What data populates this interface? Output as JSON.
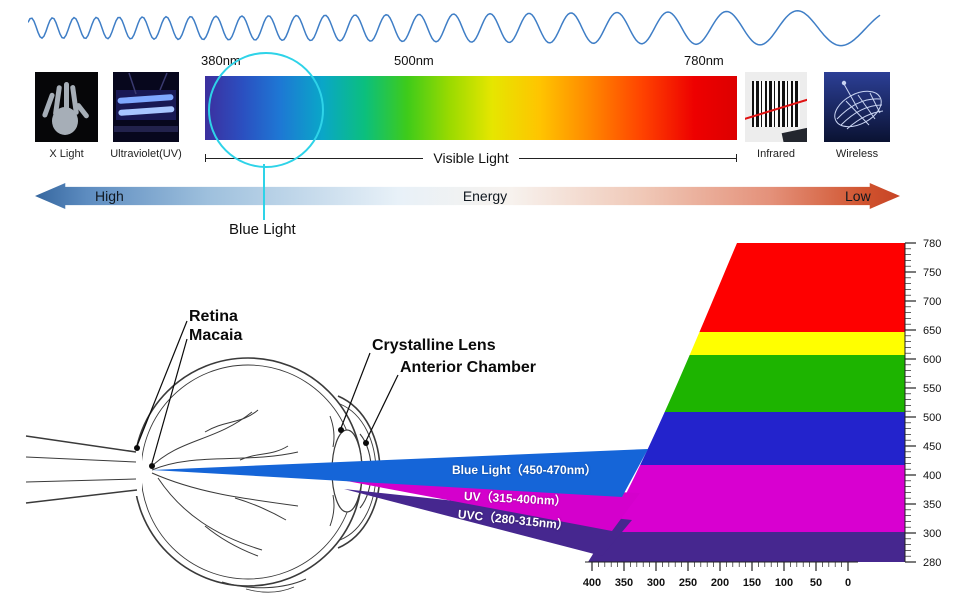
{
  "colors": {
    "wave_stroke": "#3f7ec6",
    "highlight_circle": "#2ed3e8",
    "energy_high_end": "#36679f",
    "energy_low_end": "#c74426"
  },
  "wavelength_ticks": {
    "t380": "380nm",
    "t500": "500nm",
    "t780": "780nm"
  },
  "spectrum_row": {
    "left_thumbs": [
      "X Light",
      "Ultraviolet(UV)"
    ],
    "center_label": "Visible Light",
    "right_thumbs": [
      "Infrared",
      "Wireless"
    ]
  },
  "blue_light_callout": "Blue Light",
  "energy_bar": {
    "high": "High",
    "center": "Energy",
    "low": "Low"
  },
  "eye_labels": {
    "retina": "Retina",
    "macaia": "Macaia",
    "crystalline_lens": "Crystalline Lens",
    "anterior_chamber": "Anterior Chamber"
  },
  "beams": {
    "blue": {
      "label": "Blue Light（450-470nm）",
      "color": "#1565d8"
    },
    "uv": {
      "label": "UV（315-400nm）",
      "color": "#d400cc"
    },
    "uvc": {
      "label": "UVC（280-315nm）",
      "color": "#46278f"
    }
  },
  "chart_data": {
    "type": "area",
    "title": "",
    "y_axis": {
      "unit": "nm",
      "tick_labels": [
        "780",
        "750",
        "700",
        "650",
        "600",
        "550",
        "500",
        "450",
        "400",
        "350",
        "300",
        "280"
      ]
    },
    "x_axis": {
      "tick_labels": [
        "400",
        "350",
        "300",
        "250",
        "200",
        "150",
        "100",
        "50",
        "0"
      ]
    },
    "bands": [
      {
        "range_nm": "650-780",
        "color": "#fe0000"
      },
      {
        "range_nm": "600-650",
        "color": "#ffff00"
      },
      {
        "range_nm": "500-600",
        "color": "#1db400"
      },
      {
        "range_nm": "450-500",
        "color": "#2323cc"
      },
      {
        "range_nm": "315-450",
        "color": "#d800d0"
      },
      {
        "range_nm": "280-315",
        "color": "#46278f"
      }
    ],
    "legend": "off",
    "grid": "off"
  }
}
